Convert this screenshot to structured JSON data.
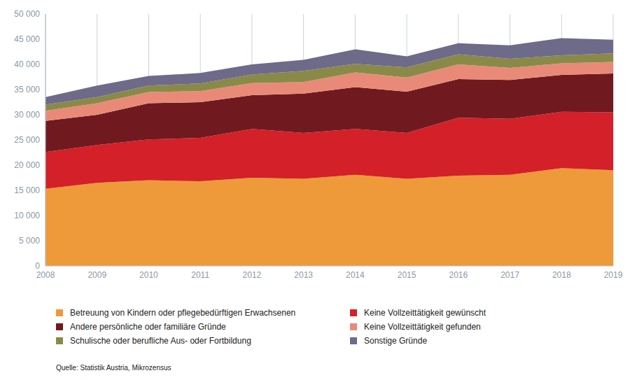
{
  "chart_data": {
    "type": "area",
    "stacked": true,
    "grid": true,
    "source": "Quelle: Statistik Austria, Mikrozensus",
    "categories": [
      "2008",
      "2009",
      "2010",
      "2011",
      "2012",
      "2013",
      "2014",
      "2015",
      "2016",
      "2017",
      "2018",
      "2019"
    ],
    "ylim": [
      0,
      50000
    ],
    "yticks": [
      0,
      {
        "value": 5000,
        "label": "5 000"
      },
      {
        "value": 10000,
        "label": "10 000"
      },
      {
        "value": 15000,
        "label": "15 000"
      },
      {
        "value": 20000,
        "label": "20 000"
      },
      {
        "value": 25000,
        "label": "25 000"
      },
      {
        "value": 30000,
        "label": "30 000"
      },
      {
        "value": 35000,
        "label": "35 000"
      },
      {
        "value": 40000,
        "label": "40 000"
      },
      {
        "value": 45000,
        "label": "45 000"
      },
      {
        "value": 50000,
        "label": "50 000"
      }
    ],
    "series": [
      {
        "name": "Betreuung von Kindern oder pflegebedürftigen Erwachsenen",
        "color": "#ee9a3a",
        "values": [
          15300,
          16500,
          17000,
          16800,
          17500,
          17300,
          18100,
          17300,
          17900,
          18100,
          19400,
          19000
        ]
      },
      {
        "name": "Keine Vollzeittätigkeit gewünscht",
        "color": "#d42028",
        "values": [
          7300,
          7500,
          8100,
          8600,
          9700,
          9100,
          9100,
          9100,
          11500,
          11100,
          11200,
          11500
        ]
      },
      {
        "name": "Andere persönliche oder familiäre Gründe",
        "color": "#701a1f",
        "values": [
          6200,
          6000,
          7200,
          7100,
          6700,
          7800,
          8300,
          8200,
          7700,
          7700,
          7300,
          7700
        ]
      },
      {
        "name": "Keine Vollzeittätigkeit gefunden",
        "color": "#e98a78",
        "values": [
          2000,
          2300,
          2200,
          2200,
          2400,
          2300,
          2900,
          2800,
          2900,
          2400,
          2300,
          2300
        ]
      },
      {
        "name": "Schulische oder berufliche Aus- oder Fortbildung",
        "color": "#8a8a48",
        "values": [
          1200,
          1200,
          1300,
          1500,
          1700,
          2200,
          1700,
          2000,
          2000,
          1800,
          1600,
          1700
        ]
      },
      {
        "name": "Sonstige Gründe",
        "color": "#6e6a8a",
        "values": [
          1500,
          2300,
          1900,
          2100,
          2000,
          2200,
          2900,
          2200,
          2200,
          2700,
          3400,
          2700
        ]
      }
    ]
  }
}
